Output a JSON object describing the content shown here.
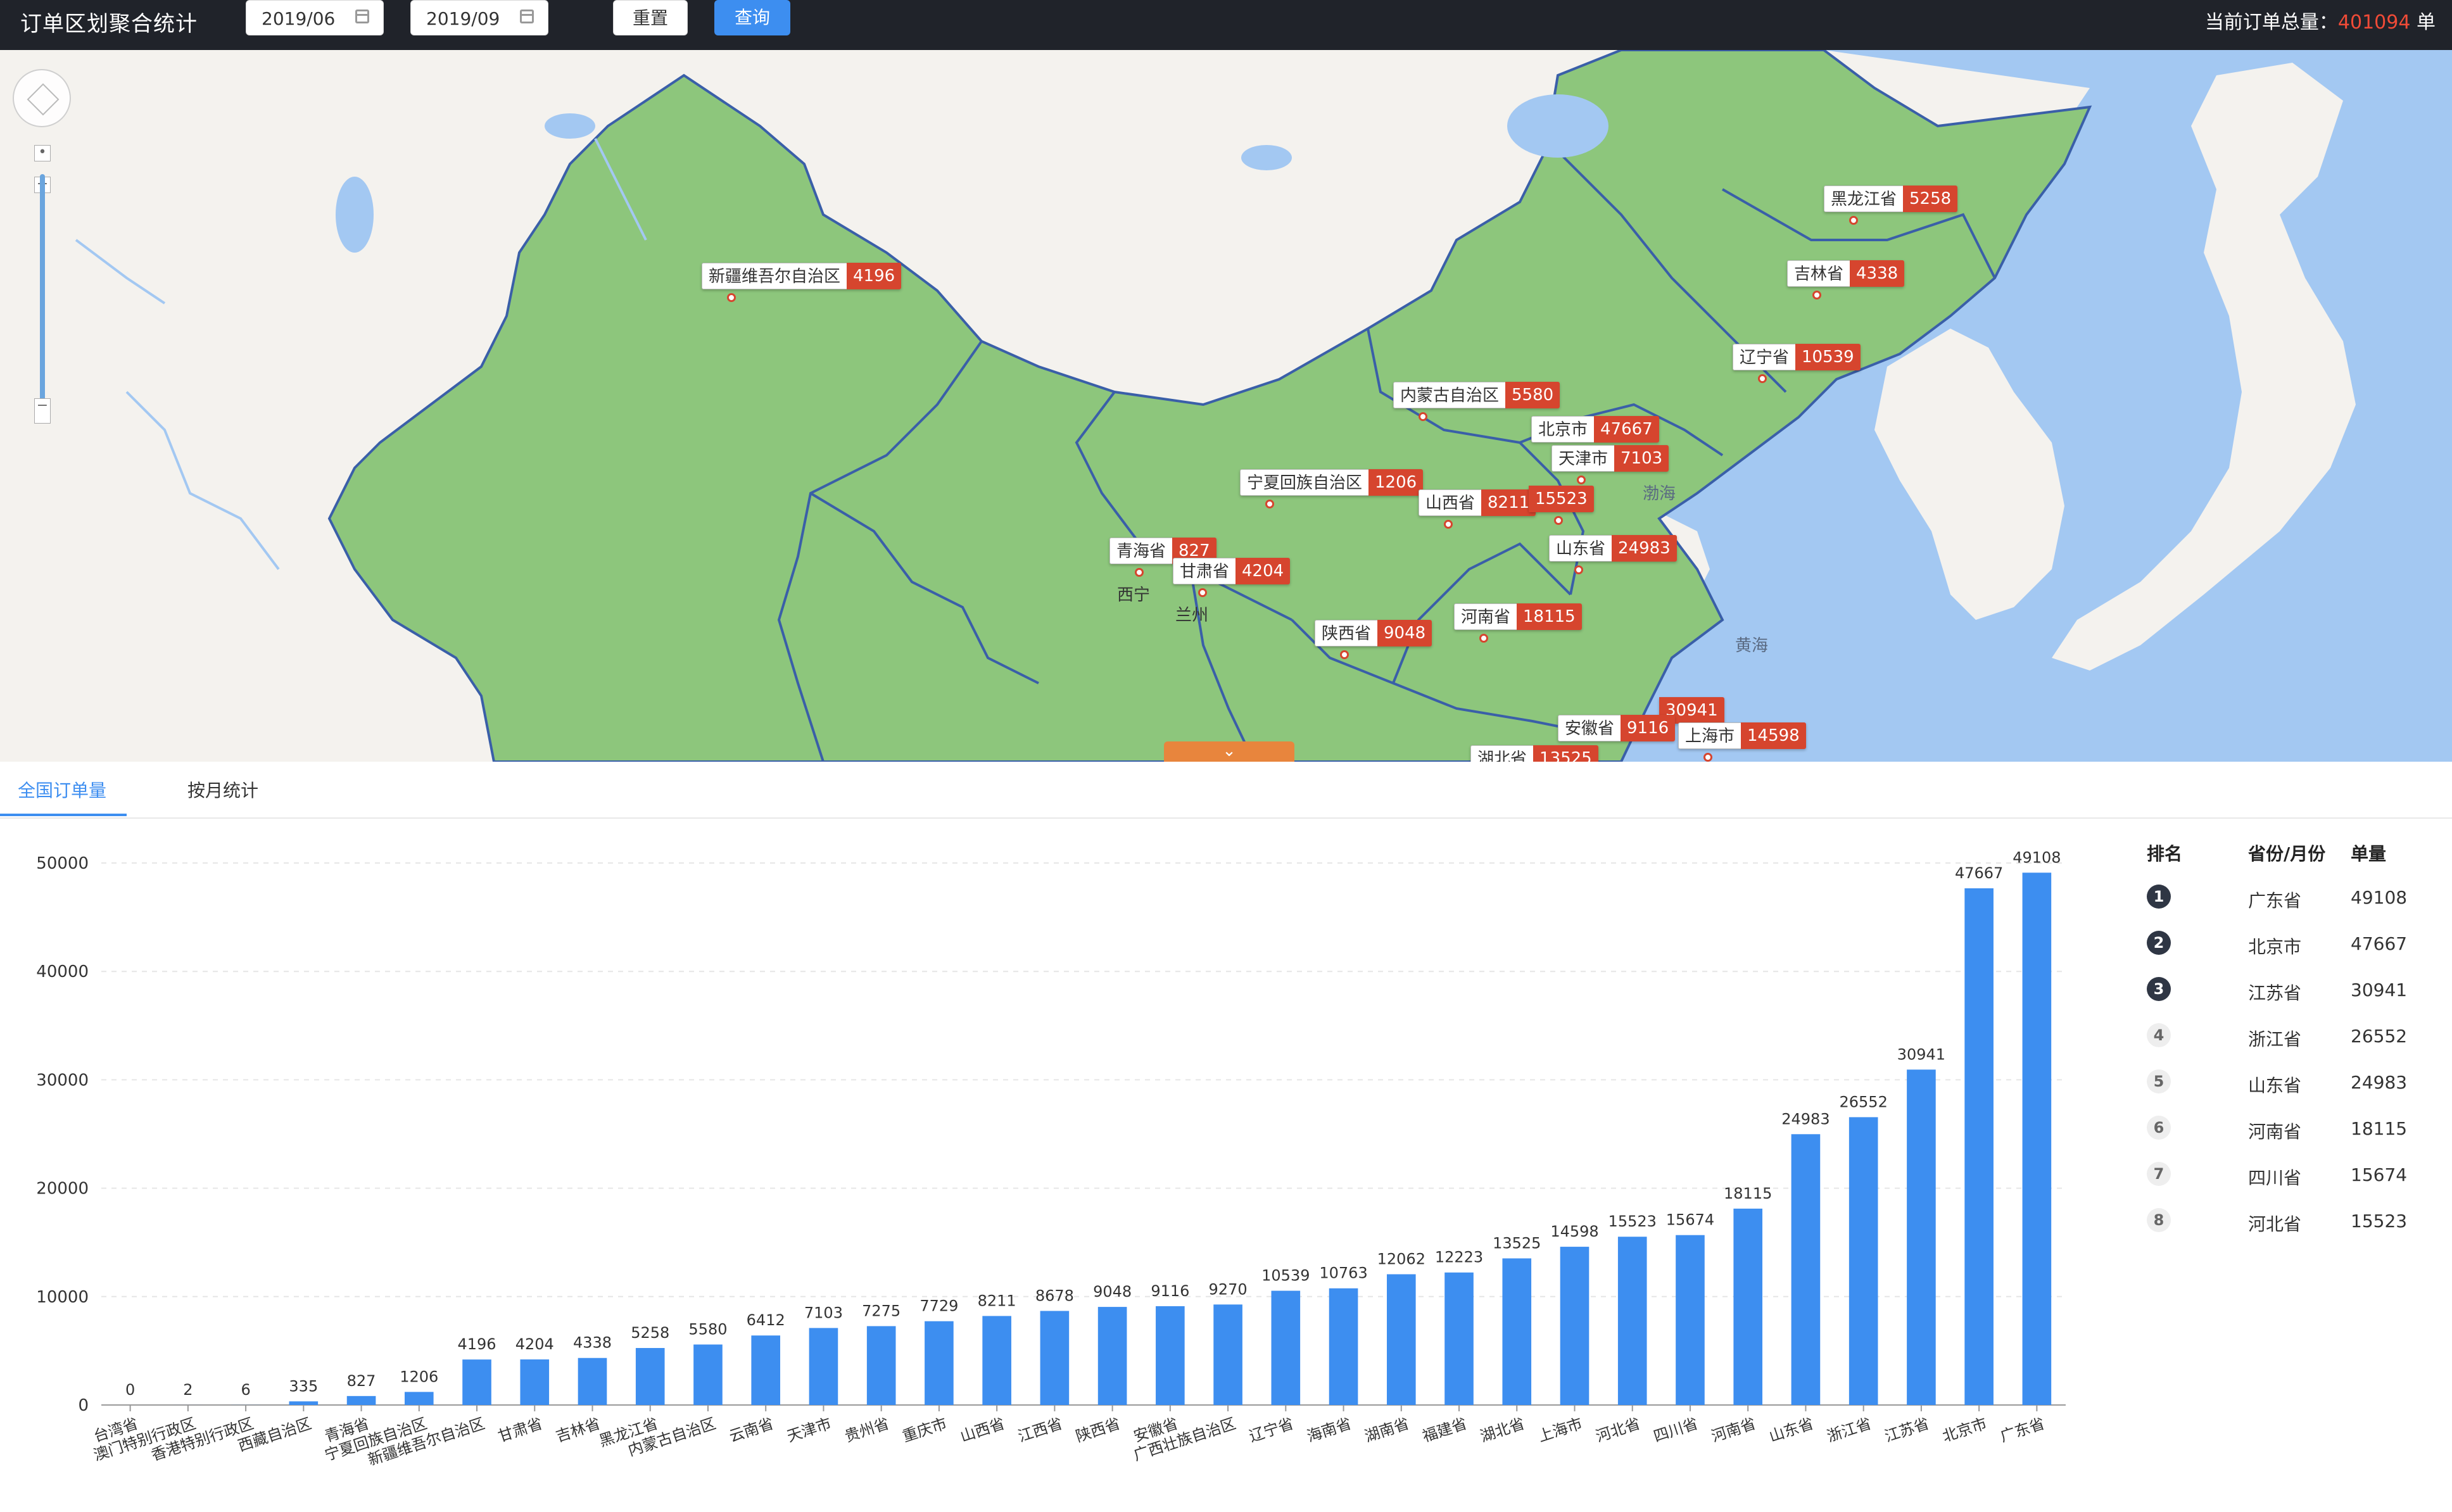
{
  "header": {
    "title": "订单区划聚合统计",
    "date_start": "2019/06",
    "date_end": "2019/09",
    "reset_label": "重置",
    "query_label": "查询",
    "total_label": "当前订单总量：",
    "total_value": "401094",
    "total_unit": " 单"
  },
  "map": {
    "markers": [
      {
        "name": "新疆维吾尔自治区",
        "value": "4196"
      },
      {
        "name": "黑龙江省",
        "value": "5258"
      },
      {
        "name": "吉林省",
        "value": "4338"
      },
      {
        "name": "辽宁省",
        "value": "10539"
      },
      {
        "name": "内蒙古自治区",
        "value": "5580"
      },
      {
        "name": "北京市",
        "value": "47667"
      },
      {
        "name": "天津市",
        "value": "7103"
      },
      {
        "name": "宁夏回族自治区",
        "value": "1206"
      },
      {
        "name": "山西省",
        "value": "8211"
      },
      {
        "name": "",
        "value": "15523"
      },
      {
        "name": "青海省",
        "value": "827"
      },
      {
        "name": "甘肃省",
        "value": "4204"
      },
      {
        "name": "山东省",
        "value": "24983"
      },
      {
        "name": "陕西省",
        "value": "9048"
      },
      {
        "name": "河南省",
        "value": "18115"
      },
      {
        "name": "",
        "value": "30941"
      },
      {
        "name": "安徽省",
        "value": "9116"
      },
      {
        "name": "上海市",
        "value": "14598"
      },
      {
        "name": "湖北省",
        "value": "13525"
      }
    ],
    "sea_labels": [
      "渤海",
      "黄海"
    ],
    "city_labels": [
      "西宁",
      "兰州"
    ],
    "collapse_icon": "chevron-down-icon"
  },
  "tabs": [
    {
      "label": "全国订单量",
      "active": true
    },
    {
      "label": "按月统计",
      "active": false
    }
  ],
  "ranking": {
    "headers": [
      "排名",
      "省份/月份",
      "单量"
    ],
    "rows": [
      {
        "rank": "1",
        "name": "广东省",
        "value": "49108"
      },
      {
        "rank": "2",
        "name": "北京市",
        "value": "47667"
      },
      {
        "rank": "3",
        "name": "江苏省",
        "value": "30941"
      },
      {
        "rank": "4",
        "name": "浙江省",
        "value": "26552"
      },
      {
        "rank": "5",
        "name": "山东省",
        "value": "24983"
      },
      {
        "rank": "6",
        "name": "河南省",
        "value": "18115"
      },
      {
        "rank": "7",
        "name": "四川省",
        "value": "15674"
      },
      {
        "rank": "8",
        "name": "河北省",
        "value": "15523"
      }
    ]
  },
  "chart_data": {
    "type": "bar",
    "categories": [
      "台湾省",
      "澳门特别行政区",
      "香港特别行政区",
      "西藏自治区",
      "青海省",
      "宁夏回族自治区",
      "新疆维吾尔自治区",
      "甘肃省",
      "吉林省",
      "黑龙江省",
      "内蒙古自治区",
      "云南省",
      "天津市",
      "贵州省",
      "重庆市",
      "山西省",
      "江西省",
      "陕西省",
      "安徽省",
      "广西壮族自治区",
      "辽宁省",
      "海南省",
      "湖南省",
      "福建省",
      "湖北省",
      "上海市",
      "河北省",
      "四川省",
      "河南省",
      "山东省",
      "浙江省",
      "江苏省",
      "北京市",
      "广东省"
    ],
    "values": [
      0,
      2,
      6,
      335,
      827,
      1206,
      4196,
      4204,
      4338,
      5258,
      5580,
      6412,
      7103,
      7275,
      7729,
      8211,
      8678,
      9048,
      9116,
      9270,
      10539,
      10763,
      12062,
      12223,
      13525,
      14598,
      15523,
      15674,
      18115,
      24983,
      26552,
      30941,
      47667,
      49108
    ],
    "yticks": [
      "0",
      "10000",
      "20000",
      "30000",
      "40000",
      "50000"
    ],
    "ylim": [
      0,
      50000
    ],
    "color": "#3d8ef0",
    "grid": true
  }
}
